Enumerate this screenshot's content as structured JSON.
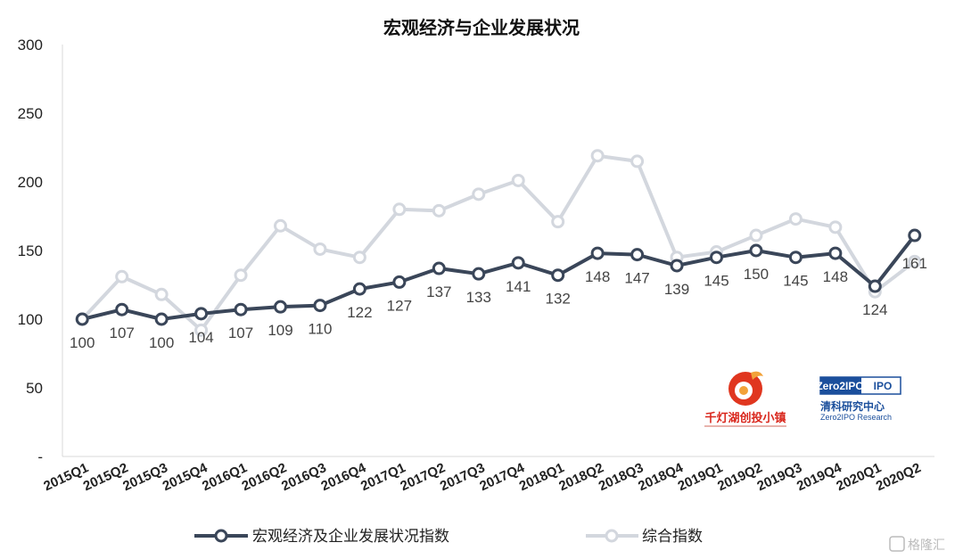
{
  "chart_data": {
    "type": "line",
    "title": "宏观经济与企业发展状况",
    "xlabel": "",
    "ylabel": "",
    "ylim": [
      0,
      300
    ],
    "yticks": [
      {
        "value": 0,
        "label": "-"
      },
      {
        "value": 50,
        "label": "50"
      },
      {
        "value": 100,
        "label": "100"
      },
      {
        "value": 150,
        "label": "150"
      },
      {
        "value": 200,
        "label": "200"
      },
      {
        "value": 250,
        "label": "250"
      },
      {
        "value": 300,
        "label": "300"
      }
    ],
    "grid": false,
    "legend_position": "bottom",
    "categories": [
      "2015Q1",
      "2015Q2",
      "2015Q3",
      "2015Q4",
      "2016Q1",
      "2016Q2",
      "2016Q3",
      "2016Q4",
      "2017Q1",
      "2017Q2",
      "2017Q3",
      "2017Q4",
      "2018Q1",
      "2018Q2",
      "2018Q3",
      "2018Q4",
      "2019Q1",
      "2019Q2",
      "2019Q3",
      "2019Q4",
      "2020Q1",
      "2020Q2"
    ],
    "series": [
      {
        "name": "宏观经济及企业发展状况指数",
        "color": "#3a4659",
        "values": [
          100,
          107,
          100,
          104,
          107,
          109,
          110,
          122,
          127,
          137,
          133,
          141,
          132,
          148,
          147,
          139,
          145,
          150,
          145,
          148,
          124,
          161
        ],
        "labels": [
          "100",
          "107",
          "100",
          "104",
          "107",
          "109",
          "110",
          "122",
          "127",
          "137",
          "133",
          "141",
          "132",
          "148",
          "147",
          "139",
          "145",
          "150",
          "145",
          "148",
          "124",
          "161"
        ]
      },
      {
        "name": "综合指数",
        "color": "#d3d7de",
        "values": [
          100,
          131,
          118,
          92,
          132,
          168,
          151,
          145,
          180,
          179,
          191,
          201,
          171,
          219,
          215,
          145,
          149,
          161,
          173,
          167,
          120,
          142
        ]
      }
    ]
  },
  "logos": {
    "left_name": "千灯湖创投小镇",
    "right_name": "Zero2IPO",
    "right_cn": "清科研究中心",
    "right_en": "Zero2IPO Research"
  },
  "watermark": "格隆汇"
}
